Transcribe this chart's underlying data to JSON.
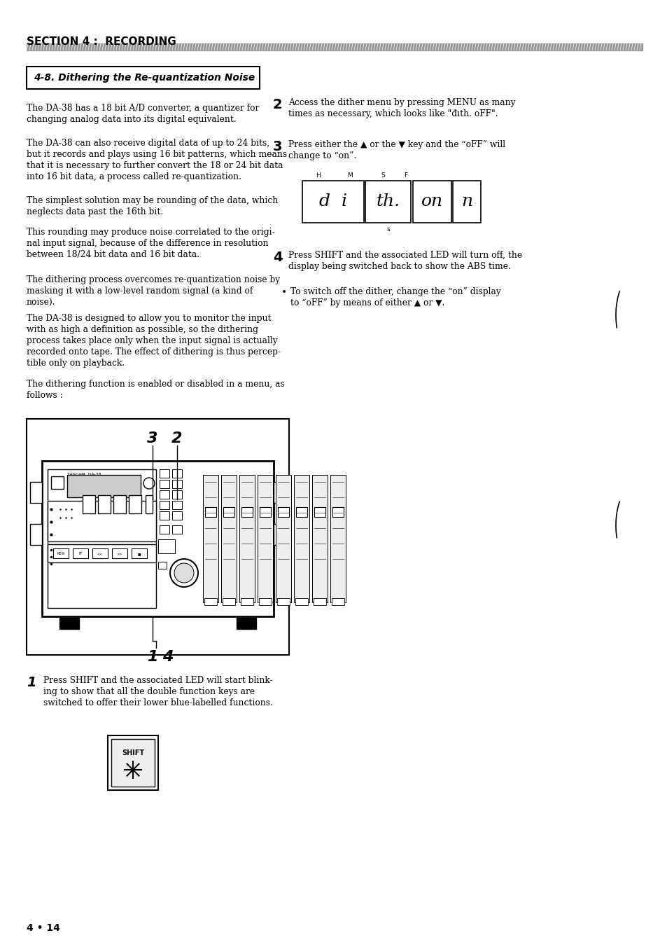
{
  "bg_color": "#ffffff",
  "page_width": 9.54,
  "page_height": 13.42,
  "section_title": "SECTION 4 :  RECORDING",
  "box_title": "4-8. Dithering the Re-quantization Noise",
  "left_paragraphs": [
    "The DA-38 has a 18 bit A/D converter, a quantizer for\nchanging analog data into its digital equivalent.",
    "The DA-38 can also receive digital data of up to 24 bits,\nbut it records and plays using 16 bit patterns, which means\nthat it is necessary to further convert the 18 or 24 bit data\ninto 16 bit data, a process called re-quantization.",
    "The simplest solution may be rounding of the data, which\nneglects data past the 16th bit.",
    "This rounding may produce noise correlated to the origi-\nnal input signal, because of the difference in resolution\nbetween 18/24 bit data and 16 bit data.",
    "The dithering process overcomes re-quantization noise by\nmasking it with a low-level random signal (a kind of\nnoise).",
    "The DA-38 is designed to allow you to monitor the input\nwith as high a definition as possible, so the dithering\nprocess takes place only when the input signal is actually\nrecorded onto tape. The effect of dithering is thus percep-\ntible only on playback.",
    "The dithering function is enabled or disabled in a menu, as\nfollows :"
  ],
  "footer": "4 • 14"
}
